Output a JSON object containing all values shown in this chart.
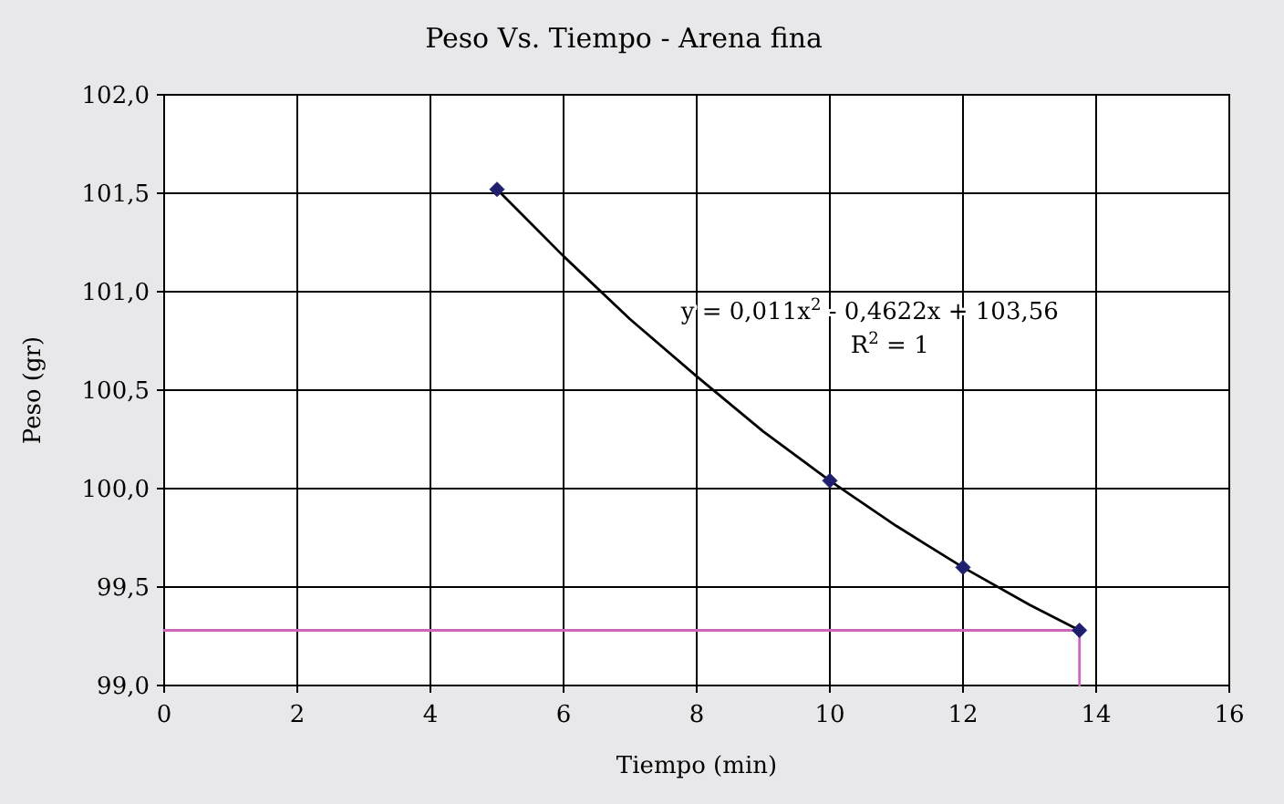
{
  "chart_data": {
    "type": "scatter",
    "title": "Peso Vs. Tiempo - Arena fina",
    "xlabel": "Tiempo (min)",
    "ylabel": "Peso (gr)",
    "xlim": [
      0,
      16
    ],
    "xticks": [
      0,
      2,
      4,
      6,
      8,
      10,
      12,
      14,
      16
    ],
    "ylim": [
      99,
      102
    ],
    "yticks": [
      {
        "value": 99,
        "label": "99,0"
      },
      {
        "value": 99.5,
        "label": "99,5"
      },
      {
        "value": 100,
        "label": "100,0"
      },
      {
        "value": 100.5,
        "label": "100,5"
      },
      {
        "value": 101,
        "label": "101,0"
      },
      {
        "value": 101.5,
        "label": "101,5"
      },
      {
        "value": 102,
        "label": "102,0"
      }
    ],
    "grid": true,
    "series": [
      {
        "type": "line",
        "color": "#000000",
        "marker": "none",
        "x": [
          5,
          6,
          7,
          8,
          9,
          10,
          11,
          12,
          13,
          13.75
        ],
        "values": [
          101.52,
          101.18,
          100.86,
          100.57,
          100.29,
          100.04,
          99.81,
          99.6,
          99.41,
          99.28
        ]
      },
      {
        "type": "line",
        "color": "#cc66bb",
        "marker": "none",
        "x": [
          0,
          13.75,
          13.75
        ],
        "values": [
          99.28,
          99.28,
          99
        ]
      },
      {
        "color": "#1f1f6e",
        "marker": "diamond",
        "x": [
          5,
          10,
          12,
          13.75
        ],
        "values": [
          101.52,
          100.04,
          99.6,
          99.28
        ]
      }
    ],
    "annotations": [
      "y = 0,011x$^{2}$ - 0,4622x + 103,56",
      "R$^{2}$ = 1"
    ]
  }
}
